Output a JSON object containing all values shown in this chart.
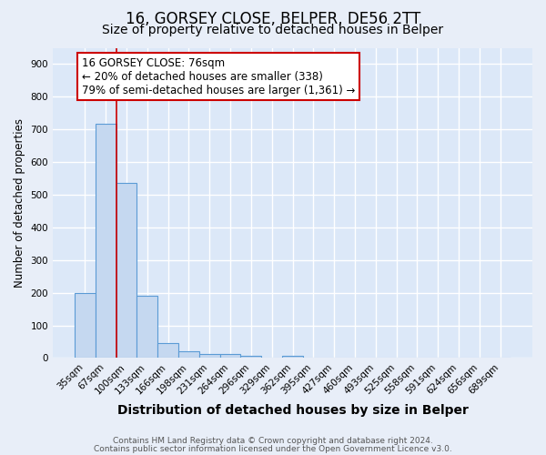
{
  "title1": "16, GORSEY CLOSE, BELPER, DE56 2TT",
  "title2": "Size of property relative to detached houses in Belper",
  "xlabel": "Distribution of detached houses by size in Belper",
  "ylabel": "Number of detached properties",
  "categories": [
    "35sqm",
    "67sqm",
    "100sqm",
    "133sqm",
    "166sqm",
    "198sqm",
    "231sqm",
    "264sqm",
    "296sqm",
    "329sqm",
    "362sqm",
    "395sqm",
    "427sqm",
    "460sqm",
    "493sqm",
    "525sqm",
    "558sqm",
    "591sqm",
    "624sqm",
    "656sqm",
    "689sqm"
  ],
  "values": [
    200,
    718,
    535,
    190,
    45,
    20,
    13,
    12,
    8,
    0,
    8,
    0,
    0,
    0,
    0,
    0,
    0,
    0,
    0,
    0,
    0
  ],
  "bar_color": "#c5d8f0",
  "bar_edge_color": "#5b9bd5",
  "red_line_x": 1.5,
  "annotation_text": "16 GORSEY CLOSE: 76sqm\n← 20% of detached houses are smaller (338)\n79% of semi-detached houses are larger (1,361) →",
  "annotation_box_color": "#ffffff",
  "annotation_box_edge": "#cc0000",
  "ylim": [
    0,
    950
  ],
  "yticks": [
    0,
    100,
    200,
    300,
    400,
    500,
    600,
    700,
    800,
    900
  ],
  "footer1": "Contains HM Land Registry data © Crown copyright and database right 2024.",
  "footer2": "Contains public sector information licensed under the Open Government Licence v3.0.",
  "bg_color": "#e8eef8",
  "plot_bg_color": "#dce8f8",
  "grid_color": "#ffffff",
  "title1_fontsize": 12,
  "title2_fontsize": 10,
  "xlabel_fontsize": 10,
  "ylabel_fontsize": 8.5,
  "tick_fontsize": 7.5,
  "annot_fontsize": 8.5,
  "footer_fontsize": 6.5
}
